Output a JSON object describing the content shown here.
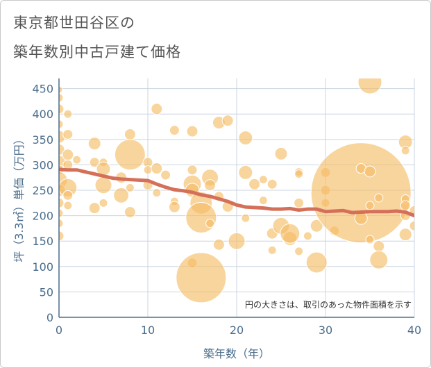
{
  "title_line1": "東京都世田谷区の",
  "title_line2": "築年数別中古戸建て価格",
  "note": "円の大きさは、取引のあった物件面積を示す",
  "colors": {
    "bubble": "#f5bc62",
    "line": "#d4705a",
    "axis_text": "#4a6d8c",
    "grid": "#c9d4df"
  },
  "chart_data": {
    "type": "scatter",
    "xlabel": "築年数（年）",
    "ylabel": "坪（3.3㎡）単価（万円）",
    "xlim": [
      0,
      40
    ],
    "ylim": [
      0,
      470
    ],
    "xticks": [
      0,
      10,
      20,
      30,
      40
    ],
    "yticks": [
      0,
      50,
      100,
      150,
      200,
      250,
      300,
      350,
      400,
      450
    ],
    "grid": true,
    "bubbles": [
      {
        "x": 0,
        "y": 448,
        "r": 5
      },
      {
        "x": 0,
        "y": 432,
        "r": 6
      },
      {
        "x": 0,
        "y": 410,
        "r": 7
      },
      {
        "x": 0,
        "y": 380,
        "r": 6
      },
      {
        "x": 0,
        "y": 355,
        "r": 9
      },
      {
        "x": 0,
        "y": 330,
        "r": 8
      },
      {
        "x": 0,
        "y": 305,
        "r": 10
      },
      {
        "x": 0,
        "y": 290,
        "r": 7
      },
      {
        "x": 0,
        "y": 270,
        "r": 12
      },
      {
        "x": 0,
        "y": 250,
        "r": 9
      },
      {
        "x": 0,
        "y": 225,
        "r": 7
      },
      {
        "x": 0,
        "y": 205,
        "r": 6
      },
      {
        "x": 0,
        "y": 185,
        "r": 6
      },
      {
        "x": 0,
        "y": 160,
        "r": 7
      },
      {
        "x": 1,
        "y": 400,
        "r": 6
      },
      {
        "x": 1,
        "y": 360,
        "r": 7
      },
      {
        "x": 1,
        "y": 320,
        "r": 8
      },
      {
        "x": 1,
        "y": 300,
        "r": 7
      },
      {
        "x": 1,
        "y": 255,
        "r": 13
      },
      {
        "x": 1,
        "y": 240,
        "r": 7
      },
      {
        "x": 1,
        "y": 220,
        "r": 6
      },
      {
        "x": 2,
        "y": 310,
        "r": 6
      },
      {
        "x": 4,
        "y": 342,
        "r": 9
      },
      {
        "x": 4,
        "y": 305,
        "r": 7
      },
      {
        "x": 4,
        "y": 215,
        "r": 8
      },
      {
        "x": 5,
        "y": 305,
        "r": 6
      },
      {
        "x": 5,
        "y": 292,
        "r": 10
      },
      {
        "x": 5,
        "y": 260,
        "r": 12
      },
      {
        "x": 5,
        "y": 225,
        "r": 6
      },
      {
        "x": 7,
        "y": 240,
        "r": 11
      },
      {
        "x": 7,
        "y": 275,
        "r": 8
      },
      {
        "x": 8,
        "y": 360,
        "r": 8
      },
      {
        "x": 8,
        "y": 320,
        "r": 22
      },
      {
        "x": 8,
        "y": 255,
        "r": 6
      },
      {
        "x": 8,
        "y": 207,
        "r": 8
      },
      {
        "x": 10,
        "y": 305,
        "r": 7
      },
      {
        "x": 10,
        "y": 290,
        "r": 6
      },
      {
        "x": 10,
        "y": 260,
        "r": 7
      },
      {
        "x": 11,
        "y": 410,
        "r": 8
      },
      {
        "x": 11,
        "y": 293,
        "r": 8
      },
      {
        "x": 11,
        "y": 245,
        "r": 6
      },
      {
        "x": 12,
        "y": 280,
        "r": 7
      },
      {
        "x": 13,
        "y": 368,
        "r": 7
      },
      {
        "x": 13,
        "y": 228,
        "r": 6
      },
      {
        "x": 13,
        "y": 217,
        "r": 8
      },
      {
        "x": 15,
        "y": 366,
        "r": 8
      },
      {
        "x": 15,
        "y": 290,
        "r": 7
      },
      {
        "x": 15,
        "y": 262,
        "r": 13
      },
      {
        "x": 15,
        "y": 250,
        "r": 10
      },
      {
        "x": 15,
        "y": 107,
        "r": 7
      },
      {
        "x": 16,
        "y": 225,
        "r": 16
      },
      {
        "x": 16,
        "y": 196,
        "r": 22
      },
      {
        "x": 16,
        "y": 78,
        "r": 36
      },
      {
        "x": 17,
        "y": 275,
        "r": 12
      },
      {
        "x": 17,
        "y": 260,
        "r": 8
      },
      {
        "x": 17,
        "y": 185,
        "r": 6
      },
      {
        "x": 18,
        "y": 383,
        "r": 9
      },
      {
        "x": 18,
        "y": 238,
        "r": 7
      },
      {
        "x": 18,
        "y": 143,
        "r": 8
      },
      {
        "x": 19,
        "y": 387,
        "r": 8
      },
      {
        "x": 19,
        "y": 218,
        "r": 8
      },
      {
        "x": 20,
        "y": 150,
        "r": 12
      },
      {
        "x": 21,
        "y": 353,
        "r": 10
      },
      {
        "x": 21,
        "y": 285,
        "r": 10
      },
      {
        "x": 21,
        "y": 195,
        "r": 6
      },
      {
        "x": 22,
        "y": 262,
        "r": 8
      },
      {
        "x": 23,
        "y": 271,
        "r": 6
      },
      {
        "x": 23,
        "y": 230,
        "r": 6
      },
      {
        "x": 24,
        "y": 262,
        "r": 7
      },
      {
        "x": 24,
        "y": 165,
        "r": 8
      },
      {
        "x": 24,
        "y": 132,
        "r": 6
      },
      {
        "x": 25,
        "y": 322,
        "r": 9
      },
      {
        "x": 25,
        "y": 180,
        "r": 12
      },
      {
        "x": 26,
        "y": 155,
        "r": 10
      },
      {
        "x": 26,
        "y": 165,
        "r": 14
      },
      {
        "x": 27,
        "y": 286,
        "r": 6
      },
      {
        "x": 27,
        "y": 282,
        "r": 6
      },
      {
        "x": 27,
        "y": 225,
        "r": 7
      },
      {
        "x": 27,
        "y": 130,
        "r": 6
      },
      {
        "x": 28,
        "y": 160,
        "r": 6
      },
      {
        "x": 29,
        "y": 180,
        "r": 9
      },
      {
        "x": 29,
        "y": 108,
        "r": 15
      },
      {
        "x": 30,
        "y": 285,
        "r": 7
      },
      {
        "x": 30,
        "y": 250,
        "r": 7
      },
      {
        "x": 30,
        "y": 225,
        "r": 6
      },
      {
        "x": 31,
        "y": 170,
        "r": 7
      },
      {
        "x": 34,
        "y": 245,
        "r": 72
      },
      {
        "x": 34,
        "y": 195,
        "r": 9
      },
      {
        "x": 34,
        "y": 293,
        "r": 7
      },
      {
        "x": 35,
        "y": 463,
        "r": 17
      },
      {
        "x": 35,
        "y": 287,
        "r": 8
      },
      {
        "x": 35,
        "y": 220,
        "r": 6
      },
      {
        "x": 35,
        "y": 153,
        "r": 6
      },
      {
        "x": 36,
        "y": 235,
        "r": 6
      },
      {
        "x": 36,
        "y": 140,
        "r": 8
      },
      {
        "x": 36,
        "y": 113,
        "r": 13
      },
      {
        "x": 39,
        "y": 345,
        "r": 10
      },
      {
        "x": 39,
        "y": 328,
        "r": 6
      },
      {
        "x": 39,
        "y": 233,
        "r": 6
      },
      {
        "x": 39,
        "y": 220,
        "r": 7
      },
      {
        "x": 39,
        "y": 200,
        "r": 7
      },
      {
        "x": 39,
        "y": 163,
        "r": 9
      },
      {
        "x": 40,
        "y": 210,
        "r": 7
      },
      {
        "x": 40,
        "y": 180,
        "r": 7
      }
    ],
    "trend": {
      "x": [
        0,
        1,
        2,
        3,
        4,
        5,
        6,
        7,
        8,
        9,
        10,
        11,
        12,
        13,
        14,
        15,
        16,
        17,
        18,
        19,
        20,
        21,
        22,
        23,
        24,
        25,
        26,
        27,
        28,
        29,
        30,
        31,
        32,
        33,
        34,
        35,
        36,
        37,
        38,
        39,
        40
      ],
      "y": [
        291,
        290,
        290,
        286,
        282,
        278,
        274,
        272,
        271,
        270,
        269,
        262,
        256,
        251,
        249,
        246,
        241,
        238,
        233,
        228,
        221,
        217,
        216,
        215,
        213,
        213,
        214,
        211,
        213,
        213,
        208,
        209,
        210,
        206,
        207,
        208,
        208,
        208,
        209,
        207,
        200
      ]
    }
  }
}
